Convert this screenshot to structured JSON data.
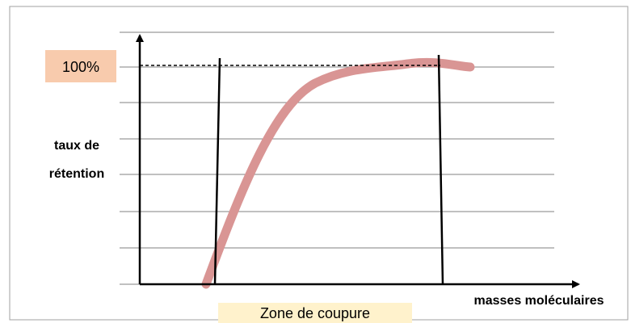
{
  "diagram": {
    "level_label": "100%",
    "y_axis_label": [
      "taux de",
      "rétention"
    ],
    "x_axis_label": "masses moléculaires",
    "zone_label": "Zone de coupure"
  }
}
